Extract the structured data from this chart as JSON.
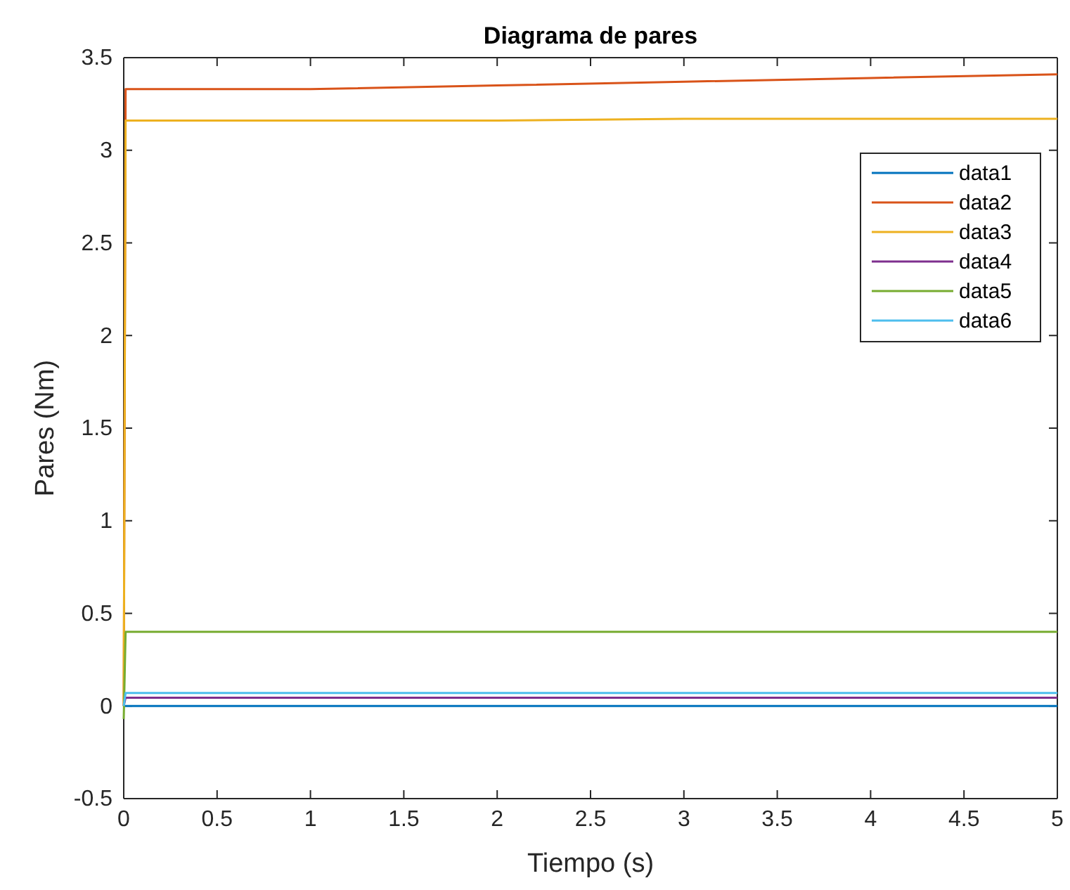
{
  "chart_data": {
    "type": "line",
    "title": "Diagrama de pares",
    "xlabel": "Tiempo (s)",
    "ylabel": "Pares (Nm)",
    "x": [
      0,
      0.01,
      1,
      2,
      3,
      4,
      5
    ],
    "series": [
      {
        "name": "data1",
        "color": "#0072bd",
        "values": [
          0,
          0,
          0,
          0,
          0,
          0,
          0
        ]
      },
      {
        "name": "data2",
        "color": "#d95319",
        "values": [
          0,
          3.33,
          3.33,
          3.35,
          3.37,
          3.39,
          3.41
        ]
      },
      {
        "name": "data3",
        "color": "#edb120",
        "values": [
          0,
          3.16,
          3.16,
          3.16,
          3.17,
          3.17,
          3.17
        ]
      },
      {
        "name": "data4",
        "color": "#7e2f8e",
        "values": [
          0,
          0.045,
          0.045,
          0.045,
          0.045,
          0.045,
          0.045
        ]
      },
      {
        "name": "data5",
        "color": "#77ac30",
        "values": [
          -0.07,
          0.4,
          0.4,
          0.4,
          0.4,
          0.4,
          0.4
        ]
      },
      {
        "name": "data6",
        "color": "#4dbeee",
        "values": [
          0,
          0.07,
          0.07,
          0.07,
          0.07,
          0.07,
          0.07
        ]
      }
    ],
    "xlim": [
      0,
      5
    ],
    "xticks": [
      0,
      {
        "value": 0.5,
        "label": "0.5"
      },
      1,
      {
        "value": 1.5,
        "label": "1.5"
      },
      2,
      {
        "value": 2.5,
        "label": "2.5"
      },
      3,
      {
        "value": 3.5,
        "label": "3.5"
      },
      4,
      {
        "value": 4.5,
        "label": "4.5"
      },
      5
    ],
    "ylim": [
      -0.5,
      3.5
    ],
    "yticks": [
      {
        "value": -0.5,
        "label": "-0.5"
      },
      0,
      {
        "value": 0.5,
        "label": "0.5"
      },
      1,
      {
        "value": 1.5,
        "label": "1.5"
      },
      2,
      {
        "value": 2.5,
        "label": "2.5"
      },
      3,
      {
        "value": 3.5,
        "label": "3.5"
      }
    ],
    "legend": "top right",
    "grid": false
  }
}
